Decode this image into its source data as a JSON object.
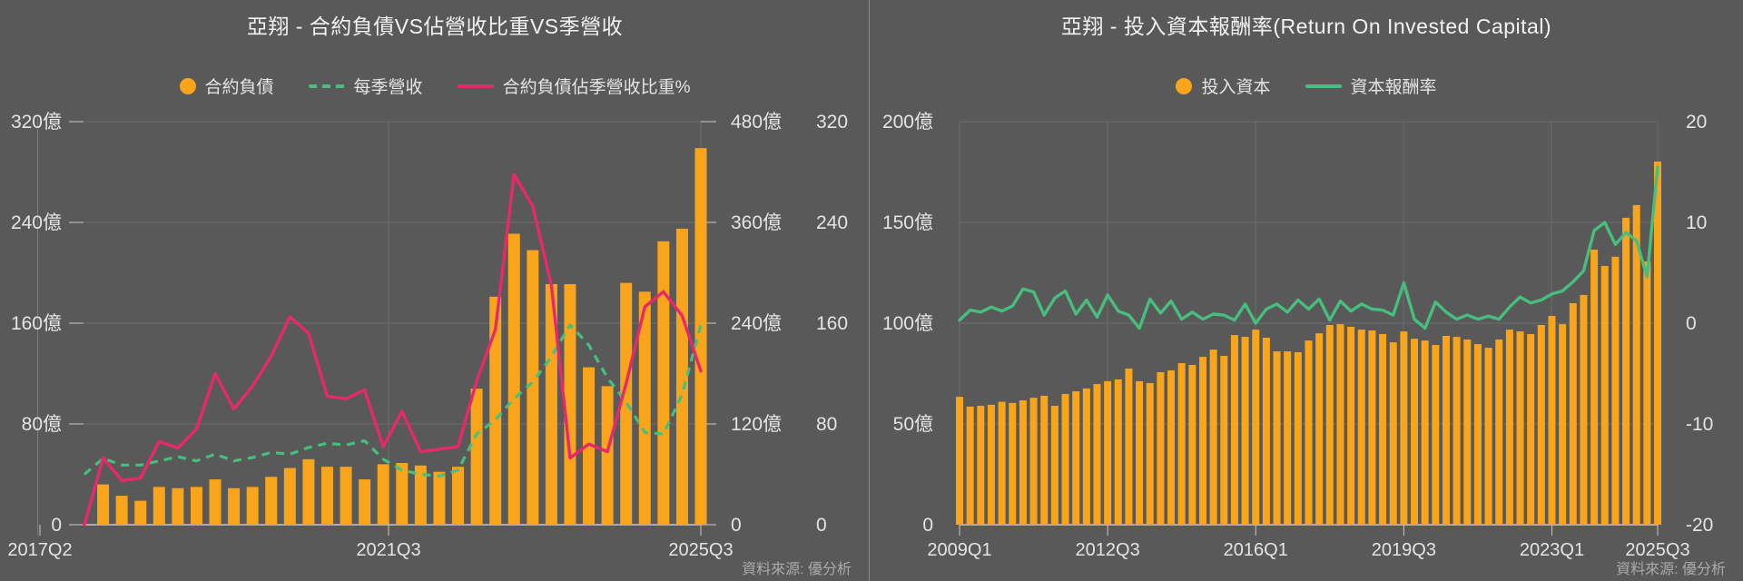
{
  "colors": {
    "background": "#595959",
    "orange": "#F9A51B",
    "pink": "#E7296B",
    "green": "#47BE7E",
    "grid": "#6D6D6D",
    "axis_line": "#7A7A7A",
    "baseline": "#C9C9C9",
    "axis_text": "#E4E4E4",
    "title_text": "#F2F2F2",
    "source_text": "#ABABAB",
    "divider": "#8C8C8C"
  },
  "left_chart": {
    "title": "亞翔 - 合約負債VS佔營收比重VS季營收",
    "source": "資料來源: 優分析",
    "legend": [
      {
        "label": "合約負債",
        "swatch": "dot",
        "color": "#F9A51B"
      },
      {
        "label": "每季營收",
        "swatch": "dashed-line",
        "color": "#47BE7E"
      },
      {
        "label": "合約負債佔季營收比重%",
        "swatch": "line",
        "color": "#E7296B"
      }
    ],
    "chart_data": {
      "type": "bar+line",
      "categories": [
        "2017Q2",
        "2017Q3",
        "2017Q4",
        "2018Q1",
        "2018Q2",
        "2018Q3",
        "2018Q4",
        "2019Q1",
        "2019Q2",
        "2019Q3",
        "2019Q4",
        "2020Q1",
        "2020Q2",
        "2020Q3",
        "2020Q4",
        "2021Q1",
        "2021Q2",
        "2021Q3",
        "2021Q4",
        "2022Q1",
        "2022Q2",
        "2022Q3",
        "2022Q4",
        "2023Q1",
        "2023Q2",
        "2023Q3",
        "2023Q4",
        "2024Q1",
        "2024Q2",
        "2024Q3",
        "2024Q4",
        "2025Q1",
        "2025Q2",
        "2025Q3"
      ],
      "x_tick_labels": [
        {
          "label": "2017Q2",
          "index": 0
        },
        {
          "label": "2021Q3",
          "index": 17
        },
        {
          "label": "2025Q3",
          "index": 33
        }
      ],
      "y_axes": [
        {
          "id": "liabilities",
          "side": "left",
          "unit": "億",
          "min": 0,
          "max": 320,
          "tick_labels": [
            "320億",
            "240億",
            "160億",
            "80億",
            "0"
          ]
        },
        {
          "id": "revenue",
          "side": "right",
          "unit": "億",
          "min": 0,
          "max": 480,
          "tick_labels": [
            "480億",
            "360億",
            "240億",
            "120億",
            "0"
          ]
        },
        {
          "id": "ratio_pct",
          "side": "right",
          "unit": "%",
          "min": 0,
          "max": 320,
          "tick_labels": [
            "320",
            "240",
            "160",
            "80",
            "0"
          ]
        }
      ],
      "series": [
        {
          "name": "合約負債",
          "type": "bar",
          "axis": "liabilities",
          "color": "#F9A51B",
          "values": [
            null,
            32,
            23,
            19,
            30,
            29,
            30,
            36,
            29,
            30,
            38,
            45,
            52,
            46,
            46,
            36,
            48,
            49,
            47,
            42,
            46,
            108,
            181,
            231,
            218,
            191,
            191,
            125,
            110,
            192,
            185,
            225,
            235,
            299
          ]
        },
        {
          "name": "每季營收",
          "type": "line",
          "style": "dashed",
          "axis": "revenue",
          "color": "#47BE7E",
          "values": [
            60,
            79,
            71,
            71,
            76,
            81,
            76,
            84,
            76,
            80,
            86,
            84,
            92,
            97,
            95,
            100,
            78,
            65,
            60,
            58,
            65,
            108,
            125,
            150,
            170,
            200,
            238,
            214,
            175,
            146,
            110,
            108,
            155,
            238
          ]
        },
        {
          "name": "合約負債佔季營收比重%",
          "type": "line",
          "style": "solid",
          "axis": "ratio_pct",
          "color": "#E7296B",
          "values": [
            0,
            53,
            35,
            37,
            66,
            61,
            76,
            120,
            92,
            110,
            134,
            165,
            152,
            102,
            100,
            107,
            62,
            90,
            58,
            60,
            62,
            114,
            155,
            278,
            253,
            190,
            53,
            64,
            58,
            112,
            173,
            185,
            166,
            122
          ]
        }
      ],
      "grid": true,
      "legend_position": "top"
    }
  },
  "right_chart": {
    "title": "亞翔 - 投入資本報酬率(Return On Invested Capital)",
    "source": "資料來源: 優分析",
    "legend": [
      {
        "label": "投入資本",
        "swatch": "dot",
        "color": "#F9A51B"
      },
      {
        "label": "資本報酬率",
        "swatch": "line",
        "color": "#47BE7E"
      }
    ],
    "chart_data": {
      "type": "bar+line",
      "categories": [
        "2009Q1",
        "2009Q2",
        "2009Q3",
        "2009Q4",
        "2010Q1",
        "2010Q2",
        "2010Q3",
        "2010Q4",
        "2011Q1",
        "2011Q2",
        "2011Q3",
        "2011Q4",
        "2012Q1",
        "2012Q2",
        "2012Q3",
        "2012Q4",
        "2013Q1",
        "2013Q2",
        "2013Q3",
        "2013Q4",
        "2014Q1",
        "2014Q2",
        "2014Q3",
        "2014Q4",
        "2015Q1",
        "2015Q2",
        "2015Q3",
        "2015Q4",
        "2016Q1",
        "2016Q2",
        "2016Q3",
        "2016Q4",
        "2017Q1",
        "2017Q2",
        "2017Q3",
        "2017Q4",
        "2018Q1",
        "2018Q2",
        "2018Q3",
        "2018Q4",
        "2019Q1",
        "2019Q2",
        "2019Q3",
        "2019Q4",
        "2020Q1",
        "2020Q2",
        "2020Q3",
        "2020Q4",
        "2021Q1",
        "2021Q2",
        "2021Q3",
        "2021Q4",
        "2022Q1",
        "2022Q2",
        "2022Q3",
        "2022Q4",
        "2023Q1",
        "2023Q2",
        "2023Q3",
        "2023Q4",
        "2024Q1",
        "2024Q2",
        "2024Q3",
        "2024Q4",
        "2025Q1",
        "2025Q2",
        "2025Q3"
      ],
      "x_tick_labels": [
        {
          "label": "2009Q1",
          "index": 0
        },
        {
          "label": "2012Q3",
          "index": 14
        },
        {
          "label": "2016Q1",
          "index": 28
        },
        {
          "label": "2019Q3",
          "index": 42
        },
        {
          "label": "2023Q1",
          "index": 56
        },
        {
          "label": "2025Q3",
          "index": 66
        }
      ],
      "y_axes": [
        {
          "id": "capital",
          "side": "left",
          "unit": "億",
          "min": 0,
          "max": 200,
          "tick_labels": [
            "200億",
            "150億",
            "100億",
            "50億",
            "0"
          ]
        },
        {
          "id": "roic",
          "side": "right",
          "unit": "%",
          "min": -20,
          "max": 20,
          "tick_labels": [
            "20",
            "10",
            "0",
            "-10",
            "-20"
          ]
        }
      ],
      "series": [
        {
          "name": "投入資本",
          "type": "bar",
          "axis": "capital",
          "color": "#F9A51B",
          "values": [
            63.5,
            58.6,
            59,
            59.5,
            61,
            60.4,
            61.7,
            63,
            64,
            59,
            64.9,
            66.2,
            67.6,
            69.8,
            71.2,
            72.1,
            77.5,
            71.2,
            70.3,
            75.7,
            76.6,
            80.2,
            79.3,
            83.3,
            86.9,
            83.8,
            94.1,
            93.2,
            96.8,
            92.8,
            86,
            86,
            85.6,
            91.4,
            95,
            99.1,
            99.5,
            98.2,
            96.8,
            96.4,
            94.6,
            90.5,
            95.9,
            92.3,
            91.4,
            89.2,
            93.7,
            93.2,
            91.9,
            89.6,
            87.8,
            91.9,
            96.8,
            95.9,
            94.6,
            99.1,
            103.6,
            99.5,
            109.9,
            114,
            136.5,
            128.4,
            133,
            152.3,
            158.6,
            130.6,
            180.2
          ]
        },
        {
          "name": "資本報酬率",
          "type": "line",
          "style": "solid",
          "axis": "roic",
          "color": "#47BE7E",
          "values": [
            0.3,
            1.3,
            1.1,
            1.6,
            1.2,
            1.7,
            3.4,
            3.1,
            0.8,
            2.5,
            3.2,
            0.9,
            2.3,
            0.6,
            2.8,
            1.2,
            0.8,
            -0.5,
            2.4,
            1.0,
            2.2,
            0.4,
            1.1,
            0.4,
            0.9,
            0.8,
            0.3,
            1.9,
            0.0,
            1.4,
            1.9,
            1.1,
            2.3,
            1.4,
            2.4,
            0.3,
            2.2,
            1.2,
            1.9,
            1.4,
            1.3,
            0.8,
            4.0,
            0.4,
            -0.5,
            2.1,
            1.1,
            0.4,
            0.8,
            0.4,
            0.7,
            0.4,
            1.6,
            2.6,
            2.0,
            2.3,
            2.9,
            3.2,
            4.1,
            5.2,
            9.2,
            10.0,
            7.8,
            9.0,
            8.2,
            4.6,
            15.5
          ]
        }
      ],
      "grid": true,
      "legend_position": "top"
    }
  }
}
